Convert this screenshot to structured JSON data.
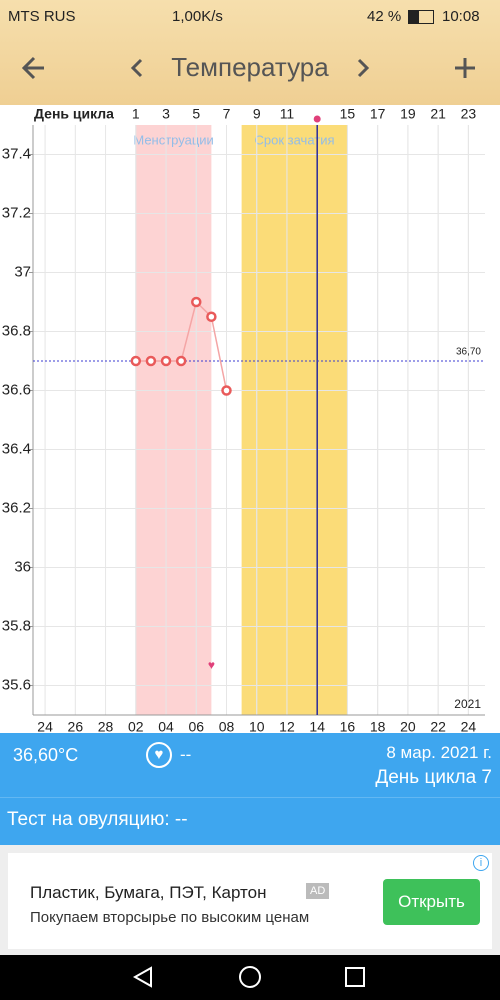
{
  "status_bar": {
    "carrier": "MTS RUS",
    "speed": "1,00K/s",
    "battery": "42 %",
    "time": "10:08"
  },
  "header": {
    "title": "Температура"
  },
  "chart_data": {
    "type": "line",
    "x_label": "День цикла",
    "x": [
      1,
      2,
      3,
      4,
      5,
      6,
      7
    ],
    "values": [
      36.7,
      36.7,
      36.7,
      36.7,
      36.9,
      36.85,
      36.6
    ],
    "color": "#e95a5a",
    "xlim": [
      -5.8,
      24.1
    ],
    "ylim": [
      35.5,
      37.5
    ],
    "yticks": [
      35.6,
      35.8,
      36,
      36.2,
      36.4,
      36.6,
      36.8,
      37,
      37.2,
      37.4
    ],
    "xticks": [
      {
        "value": -5,
        "label": "24"
      },
      {
        "value": -3,
        "label": "26"
      },
      {
        "value": -1,
        "label": "28"
      },
      {
        "value": 1,
        "label": "02"
      },
      {
        "value": 3,
        "label": "04"
      },
      {
        "value": 5,
        "label": "06"
      },
      {
        "value": 7,
        "label": "08"
      },
      {
        "value": 9,
        "label": "10"
      },
      {
        "value": 11,
        "label": "12"
      },
      {
        "value": 13,
        "label": "14"
      },
      {
        "value": 15,
        "label": "16"
      },
      {
        "value": 17,
        "label": "18"
      },
      {
        "value": 19,
        "label": "20"
      },
      {
        "value": 21,
        "label": "22"
      },
      {
        "value": 23,
        "label": "24"
      }
    ],
    "x2ticks": [
      1,
      3,
      5,
      7,
      9,
      11,
      15,
      17,
      19,
      21,
      23
    ],
    "coverline": {
      "value": 36.7,
      "label": "36,70"
    },
    "bands": [
      {
        "label": "Менструации",
        "start": 1,
        "end": 6,
        "color": "#fdd3d3"
      },
      {
        "label": "Срок зачатия",
        "start": 8,
        "end": 15,
        "color": "#fbdc78"
      }
    ],
    "today": 13,
    "heart_day": 6,
    "year": "2021",
    "grid": true
  },
  "info": {
    "temperature": "36,60°C",
    "note": "--",
    "date": "8 мар. 2021 г.",
    "cycle_day": "День цикла 7",
    "ovulation_test": "Тест на овуляцию: --"
  },
  "ad": {
    "title": "Пластик, Бумага, ПЭТ, Картон",
    "badge": "AD",
    "text": "Покупаем вторсырье по высоким ценам",
    "button": "Открыть"
  }
}
